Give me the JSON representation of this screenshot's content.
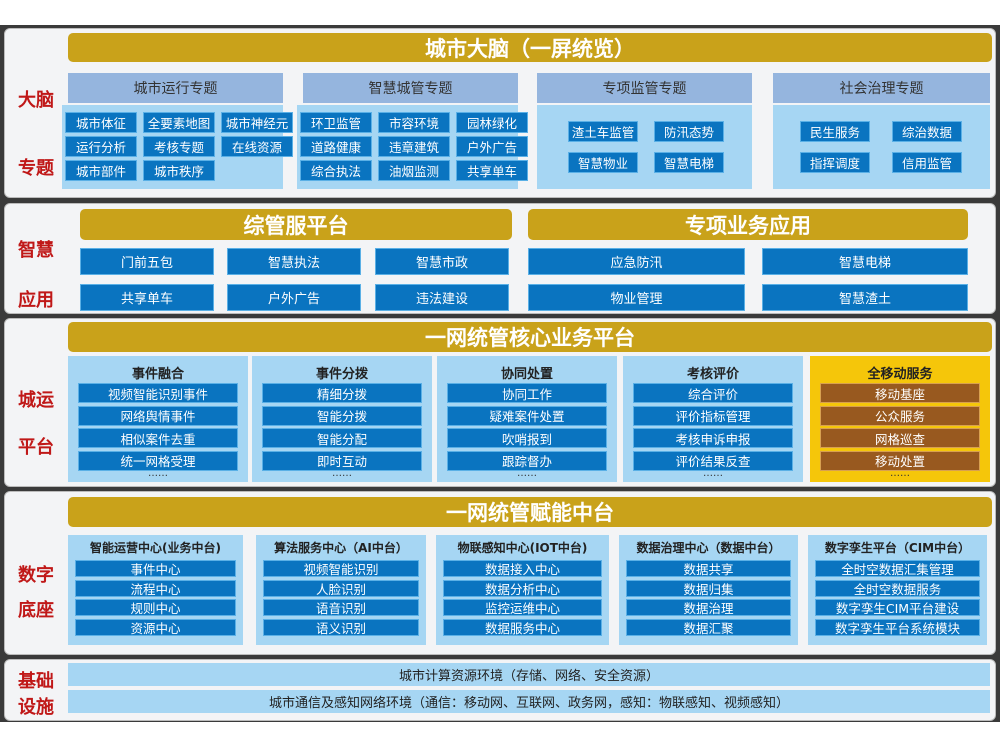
{
  "colors": {
    "title_bar": "#c9a21a",
    "item_blue": "#0a74c0",
    "group_body": "#a6d6f3",
    "group_header": "#95b5de",
    "label_red": "#c01818",
    "mobile_col": "#f5c60a",
    "mobile_item": "#98591f"
  },
  "brain": {
    "label": [
      "大脑",
      "专题"
    ],
    "title": "城市大脑（一屏统览）",
    "groups": [
      {
        "name": "城市运行专题",
        "items": [
          "城市体征",
          "全要素地图",
          "城市神经元",
          "运行分析",
          "考核专题",
          "在线资源",
          "城市部件",
          "城市秩序"
        ]
      },
      {
        "name": "智慧城管专题",
        "items": [
          "环卫监管",
          "市容环境",
          "园林绿化",
          "道路健康",
          "违章建筑",
          "户外广告",
          "综合执法",
          "油烟监测",
          "共享单车"
        ]
      },
      {
        "name": "专项监管专题",
        "items": [
          "渣土车监管",
          "防汛态势",
          "智慧物业",
          "智慧电梯"
        ]
      },
      {
        "name": "社会治理专题",
        "items": [
          "民生服务",
          "综治数据",
          "指挥调度",
          "信用监管"
        ]
      }
    ]
  },
  "apps": {
    "label": [
      "智慧",
      "应用"
    ],
    "left": {
      "title": "综管服平台",
      "items": [
        "门前五包",
        "智慧执法",
        "智慧市政",
        "共享单车",
        "户外广告",
        "违法建设"
      ]
    },
    "right": {
      "title": "专项业务应用",
      "items": [
        "应急防汛",
        "智慧电梯",
        "物业管理",
        "智慧渣土"
      ]
    }
  },
  "ops": {
    "label": [
      "城运",
      "平台"
    ],
    "title": "一网统管核心业务平台",
    "columns": [
      {
        "name": "事件融合",
        "items": [
          "视频智能识别事件",
          "网络舆情事件",
          "相似案件去重",
          "统一网格受理"
        ],
        "more": "……"
      },
      {
        "name": "事件分拨",
        "items": [
          "精细分拨",
          "智能分拨",
          "智能分配",
          "即时互动"
        ],
        "more": "……"
      },
      {
        "name": "协同处置",
        "items": [
          "协同工作",
          "疑难案件处置",
          "吹哨报到",
          "跟踪督办"
        ],
        "more": "……"
      },
      {
        "name": "考核评价",
        "items": [
          "综合评价",
          "评价指标管理",
          "考核申诉申报",
          "评价结果反查"
        ],
        "more": "……"
      },
      {
        "name": "全移动服务",
        "items": [
          "移动基座",
          "公众服务",
          "网格巡查",
          "移动处置"
        ],
        "more": "……"
      }
    ]
  },
  "base": {
    "label": [
      "数字",
      "底座"
    ],
    "title": "一网统管赋能中台",
    "columns": [
      {
        "name": "智能运营中心(业务中台)",
        "items": [
          "事件中心",
          "流程中心",
          "规则中心",
          "资源中心"
        ]
      },
      {
        "name": "算法服务中心（AI中台）",
        "items": [
          "视频智能识别",
          "人脸识别",
          "语音识别",
          "语义识别"
        ]
      },
      {
        "name": "物联感知中心(IOT中台)",
        "items": [
          "数据接入中心",
          "数据分析中心",
          "监控运维中心",
          "数据服务中心"
        ]
      },
      {
        "name": "数据治理中心（数据中台）",
        "items": [
          "数据共享",
          "数据归集",
          "数据治理",
          "数据汇聚"
        ]
      },
      {
        "name": "数字孪生平台（CIM中台）",
        "items": [
          "全时空数据汇集管理",
          "全时空数据服务",
          "数字孪生CIM平台建设",
          "数字孪生平台系统模块"
        ]
      }
    ]
  },
  "infra": {
    "label": [
      "基础",
      "设施"
    ],
    "bars": [
      "城市计算资源环境（存储、网络、安全资源）",
      "城市通信及感知网络环境（通信：移动网、互联网、政务网，感知：物联感知、视频感知）"
    ]
  }
}
